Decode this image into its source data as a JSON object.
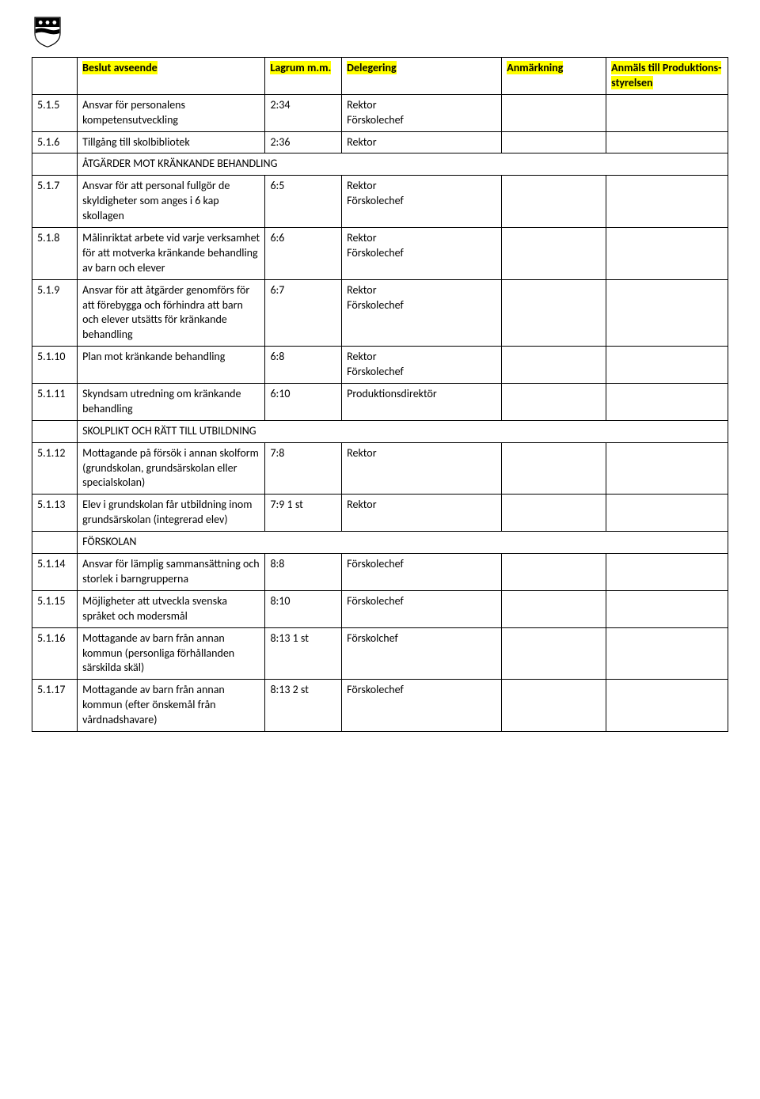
{
  "header": {
    "col1": "",
    "col2": "Beslut avseende",
    "col3": "Lagrum m.m.",
    "col4": "Delegering",
    "col5": "Anmärkning",
    "col6": "Anmäls till Produktions-styrelsen"
  },
  "rows": [
    {
      "num": "5.1.5",
      "desc": "Ansvar för personalens kompetensutveckling",
      "lag": "2:34",
      "deleg": "Rektor\nFörskolechef",
      "anm": "",
      "anmals": ""
    },
    {
      "num": "5.1.6",
      "desc": "Tillgång till skolbibliotek",
      "lag": "2:36",
      "deleg": "Rektor",
      "anm": "",
      "anmals": ""
    },
    {
      "section": "ÅTGÄRDER MOT KRÄNKANDE BEHANDLING"
    },
    {
      "num": "5.1.7",
      "desc": "Ansvar för att personal fullgör de skyldigheter som anges i 6 kap skollagen",
      "lag": "6:5",
      "deleg": "Rektor\nFörskolechef",
      "anm": "",
      "anmals": ""
    },
    {
      "num": "5.1.8",
      "desc": "Målinriktat arbete vid varje verksamhet för att motverka kränkande behandling av barn och elever",
      "lag": "6:6",
      "deleg": "Rektor\nFörskolechef",
      "anm": "",
      "anmals": ""
    },
    {
      "num": "5.1.9",
      "desc": "Ansvar för att åtgärder genomförs för att förebygga och förhindra att barn och elever utsätts för kränkande behandling",
      "lag": "6:7",
      "deleg": "Rektor\nFörskolechef",
      "anm": "",
      "anmals": ""
    },
    {
      "num": "5.1.10",
      "desc": "Plan mot kränkande behandling",
      "lag": "6:8",
      "deleg": "Rektor\nFörskolechef",
      "anm": "",
      "anmals": ""
    },
    {
      "num": "5.1.11",
      "desc": "Skyndsam utredning om kränkande behandling",
      "lag": "6:10",
      "deleg": "Produktionsdirektör",
      "anm": "",
      "anmals": ""
    },
    {
      "section": "SKOLPLIKT OCH RÄTT TILL UTBILDNING"
    },
    {
      "num": "5.1.12",
      "desc": "Mottagande på försök i annan skolform (grundskolan, grundsärskolan eller specialskolan)",
      "lag": "7:8",
      "deleg": "Rektor",
      "anm": "",
      "anmals": ""
    },
    {
      "num": "5.1.13",
      "desc": "Elev i grundskolan får utbildning inom grundsärskolan (integrerad elev)",
      "lag": "7:9 1 st",
      "deleg": "Rektor",
      "anm": "",
      "anmals": ""
    },
    {
      "section": "FÖRSKOLAN"
    },
    {
      "num": "5.1.14",
      "desc": "Ansvar för lämplig sammansättning och storlek i barngrupperna",
      "lag": "8:8",
      "deleg": "Förskolechef",
      "anm": "",
      "anmals": ""
    },
    {
      "num": "5.1.15",
      "desc": "Möjligheter att utveckla svenska språket och modersmål",
      "lag": "8:10",
      "deleg": "Förskolechef",
      "anm": "",
      "anmals": ""
    },
    {
      "num": "5.1.16",
      "desc": "Mottagande av barn från annan kommun (personliga förhållanden särskilda skäl)",
      "lag": "8:13 1 st",
      "deleg": "Förskolchef",
      "anm": "",
      "anmals": ""
    },
    {
      "num": "5.1.17",
      "desc": "Mottagande av barn från annan kommun (efter önskemål från vårdnadshavare)",
      "lag": "8:13 2 st",
      "deleg": "Förskolechef",
      "anm": "",
      "anmals": ""
    }
  ],
  "style": {
    "highlight_bg": "#ffff00",
    "border_color": "#000000",
    "font_size": 14
  }
}
